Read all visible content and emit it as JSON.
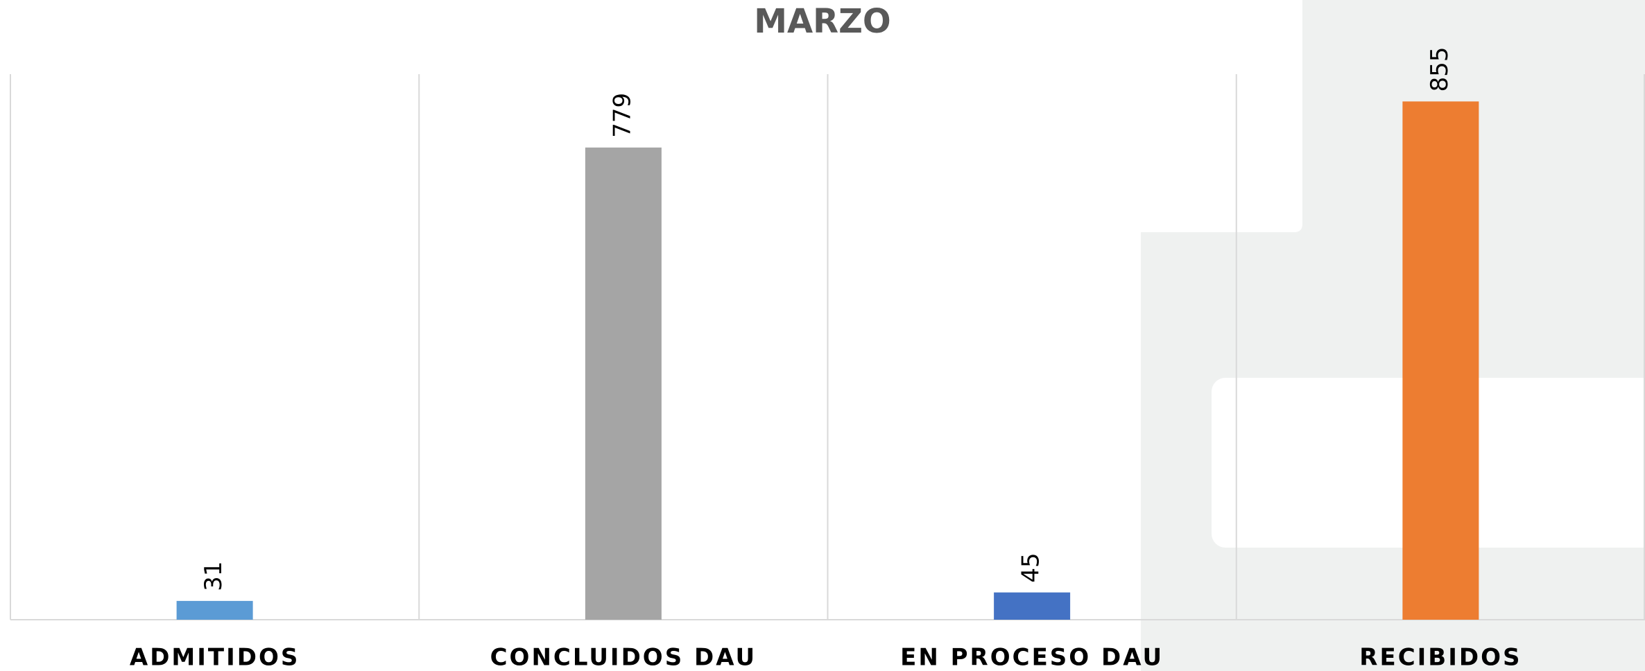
{
  "chart_data": {
    "type": "bar",
    "title": "MARZO",
    "categories": [
      "ADMITIDOS",
      "CONCLUIDOS DAU",
      "EN PROCESO DAU",
      "RECIBIDOS"
    ],
    "values": [
      31,
      779,
      45,
      855
    ],
    "colors": [
      "#5b9bd5",
      "#a5a5a5",
      "#4472c4",
      "#ed7d31"
    ],
    "ylim": [
      0,
      900
    ],
    "grid": true
  }
}
